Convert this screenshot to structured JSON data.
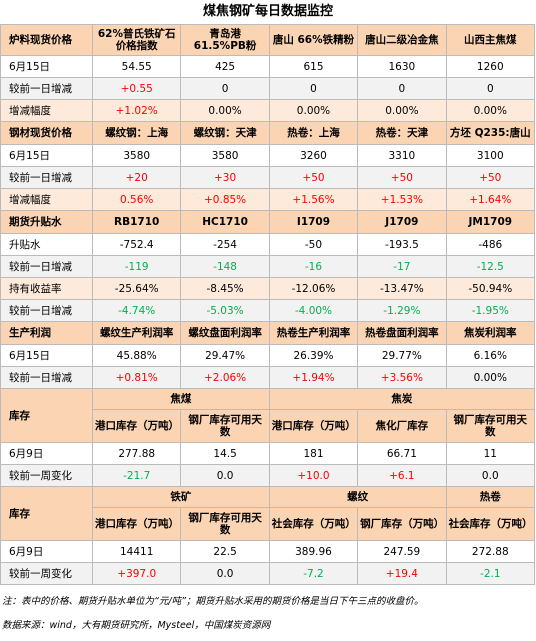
{
  "title": "煤焦钢矿每日数据监控",
  "sections": [
    {
      "header": [
        "炉料现货价格",
        "62%普氏铁矿石价格指数",
        "青岛港 61.5%PB粉",
        "唐山 66%铁精粉",
        "唐山二级冶金焦",
        "山西主焦煤"
      ],
      "rows": [
        [
          "6月15日",
          "54.55",
          "425",
          "615",
          "1630",
          "1260"
        ],
        [
          "较前一日增减",
          "+0.55",
          "0",
          "0",
          "0",
          "0"
        ],
        [
          "增减幅度",
          "+1.02%",
          "0.00%",
          "0.00%",
          "0.00%",
          "0.00%"
        ]
      ]
    },
    {
      "header": [
        "钢材现货价格",
        "螺纹钢：上海",
        "螺纹钢：天津",
        "热卷：上海",
        "热卷：天津",
        "方坯 Q235:唐山"
      ],
      "rows": [
        [
          "6月15日",
          "3580",
          "3580",
          "3260",
          "3310",
          "3100"
        ],
        [
          "较前一日增减",
          "+20",
          "+30",
          "+50",
          "+50",
          "+50"
        ],
        [
          "增减幅度",
          "0.56%",
          "+0.85%",
          "+1.56%",
          "+1.53%",
          "+1.64%"
        ]
      ]
    },
    {
      "header": [
        "期货升贴水",
        "RB1710",
        "HC1710",
        "I1709",
        "J1709",
        "JM1709"
      ],
      "rows": [
        [
          "升贴水",
          "-752.4",
          "-254",
          "-50",
          "-193.5",
          "-486"
        ],
        [
          "较前一日增减",
          "-119",
          "-148",
          "-16",
          "-17",
          "-12.5"
        ],
        [
          "持有收益率",
          "-25.64%",
          "-8.45%",
          "-12.06%",
          "-13.47%",
          "-50.94%"
        ],
        [
          "较前一日增减",
          "-4.74%",
          "-5.03%",
          "-4.00%",
          "-1.29%",
          "-1.95%"
        ]
      ]
    },
    {
      "header": [
        "生产利润",
        "螺纹生产利润率",
        "螺纹盘面利润率",
        "热卷生产利润率",
        "热卷盘面利润率",
        "焦炭利润率"
      ],
      "rows": [
        [
          "6月15日",
          "45.88%",
          "29.47%",
          "26.39%",
          "29.77%",
          "6.16%"
        ],
        [
          "较前一日增减",
          "+0.81%",
          "+2.06%",
          "+1.94%",
          "+3.56%",
          "0.00%"
        ]
      ]
    }
  ],
  "inventory": [
    {
      "label": "库存",
      "groups": [
        "焦煤",
        "焦炭"
      ],
      "subheader": [
        "港口库存（万吨）",
        "钢厂库存可用天数",
        "港口库存（万吨）",
        "焦化厂库存",
        "钢厂库存可用天数"
      ],
      "rows": [
        [
          "6月9日",
          "277.88",
          "14.5",
          "181",
          "66.71",
          "11"
        ],
        [
          "较前一周变化",
          "-21.7",
          "0.0",
          "+10.0",
          "+6.1",
          "0.0"
        ]
      ]
    },
    {
      "label": "库存",
      "groups": [
        "铁矿",
        "螺纹",
        "热卷"
      ],
      "subheader": [
        "港口库存（万吨）",
        "钢厂库存可用天数",
        "社会库存（万吨）",
        "钢厂库存（万吨）",
        "社会库存（万吨）"
      ],
      "rows": [
        [
          "6月9日",
          "14411",
          "22.5",
          "389.96",
          "247.59",
          "272.88"
        ],
        [
          "较前一周变化",
          "+397.0",
          "0.0",
          "-7.2",
          "+19.4",
          "-2.1"
        ]
      ]
    }
  ],
  "notes": [
    "注：表中的价格、期货升贴水单位为“元/吨”；期货升贴水采用的期货价格是当日下午三点的收盘价。",
    "数据来源：wind，大有期货研究所，Mysteel，中国煤炭资源网"
  ]
}
